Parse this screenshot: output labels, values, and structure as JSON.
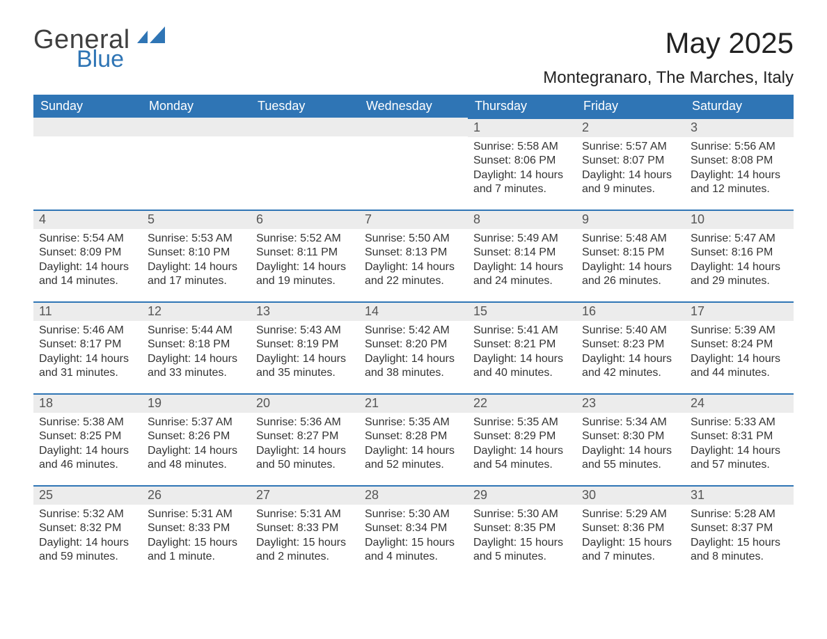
{
  "brand": {
    "word1": "General",
    "word2": "Blue",
    "accent_color": "#2f75b5"
  },
  "title": "May 2025",
  "location": "Montegranaro, The Marches, Italy",
  "colors": {
    "header_bg": "#2f75b5",
    "header_text": "#ffffff",
    "daybar_bg": "#ececec",
    "daybar_border": "#2f75b5",
    "body_text": "#333333",
    "page_bg": "#ffffff"
  },
  "weekdays": [
    "Sunday",
    "Monday",
    "Tuesday",
    "Wednesday",
    "Thursday",
    "Friday",
    "Saturday"
  ],
  "weeks": [
    [
      null,
      null,
      null,
      null,
      {
        "n": "1",
        "sunrise": "Sunrise: 5:58 AM",
        "sunset": "Sunset: 8:06 PM",
        "daylight": "Daylight: 14 hours and 7 minutes."
      },
      {
        "n": "2",
        "sunrise": "Sunrise: 5:57 AM",
        "sunset": "Sunset: 8:07 PM",
        "daylight": "Daylight: 14 hours and 9 minutes."
      },
      {
        "n": "3",
        "sunrise": "Sunrise: 5:56 AM",
        "sunset": "Sunset: 8:08 PM",
        "daylight": "Daylight: 14 hours and 12 minutes."
      }
    ],
    [
      {
        "n": "4",
        "sunrise": "Sunrise: 5:54 AM",
        "sunset": "Sunset: 8:09 PM",
        "daylight": "Daylight: 14 hours and 14 minutes."
      },
      {
        "n": "5",
        "sunrise": "Sunrise: 5:53 AM",
        "sunset": "Sunset: 8:10 PM",
        "daylight": "Daylight: 14 hours and 17 minutes."
      },
      {
        "n": "6",
        "sunrise": "Sunrise: 5:52 AM",
        "sunset": "Sunset: 8:11 PM",
        "daylight": "Daylight: 14 hours and 19 minutes."
      },
      {
        "n": "7",
        "sunrise": "Sunrise: 5:50 AM",
        "sunset": "Sunset: 8:13 PM",
        "daylight": "Daylight: 14 hours and 22 minutes."
      },
      {
        "n": "8",
        "sunrise": "Sunrise: 5:49 AM",
        "sunset": "Sunset: 8:14 PM",
        "daylight": "Daylight: 14 hours and 24 minutes."
      },
      {
        "n": "9",
        "sunrise": "Sunrise: 5:48 AM",
        "sunset": "Sunset: 8:15 PM",
        "daylight": "Daylight: 14 hours and 26 minutes."
      },
      {
        "n": "10",
        "sunrise": "Sunrise: 5:47 AM",
        "sunset": "Sunset: 8:16 PM",
        "daylight": "Daylight: 14 hours and 29 minutes."
      }
    ],
    [
      {
        "n": "11",
        "sunrise": "Sunrise: 5:46 AM",
        "sunset": "Sunset: 8:17 PM",
        "daylight": "Daylight: 14 hours and 31 minutes."
      },
      {
        "n": "12",
        "sunrise": "Sunrise: 5:44 AM",
        "sunset": "Sunset: 8:18 PM",
        "daylight": "Daylight: 14 hours and 33 minutes."
      },
      {
        "n": "13",
        "sunrise": "Sunrise: 5:43 AM",
        "sunset": "Sunset: 8:19 PM",
        "daylight": "Daylight: 14 hours and 35 minutes."
      },
      {
        "n": "14",
        "sunrise": "Sunrise: 5:42 AM",
        "sunset": "Sunset: 8:20 PM",
        "daylight": "Daylight: 14 hours and 38 minutes."
      },
      {
        "n": "15",
        "sunrise": "Sunrise: 5:41 AM",
        "sunset": "Sunset: 8:21 PM",
        "daylight": "Daylight: 14 hours and 40 minutes."
      },
      {
        "n": "16",
        "sunrise": "Sunrise: 5:40 AM",
        "sunset": "Sunset: 8:23 PM",
        "daylight": "Daylight: 14 hours and 42 minutes."
      },
      {
        "n": "17",
        "sunrise": "Sunrise: 5:39 AM",
        "sunset": "Sunset: 8:24 PM",
        "daylight": "Daylight: 14 hours and 44 minutes."
      }
    ],
    [
      {
        "n": "18",
        "sunrise": "Sunrise: 5:38 AM",
        "sunset": "Sunset: 8:25 PM",
        "daylight": "Daylight: 14 hours and 46 minutes."
      },
      {
        "n": "19",
        "sunrise": "Sunrise: 5:37 AM",
        "sunset": "Sunset: 8:26 PM",
        "daylight": "Daylight: 14 hours and 48 minutes."
      },
      {
        "n": "20",
        "sunrise": "Sunrise: 5:36 AM",
        "sunset": "Sunset: 8:27 PM",
        "daylight": "Daylight: 14 hours and 50 minutes."
      },
      {
        "n": "21",
        "sunrise": "Sunrise: 5:35 AM",
        "sunset": "Sunset: 8:28 PM",
        "daylight": "Daylight: 14 hours and 52 minutes."
      },
      {
        "n": "22",
        "sunrise": "Sunrise: 5:35 AM",
        "sunset": "Sunset: 8:29 PM",
        "daylight": "Daylight: 14 hours and 54 minutes."
      },
      {
        "n": "23",
        "sunrise": "Sunrise: 5:34 AM",
        "sunset": "Sunset: 8:30 PM",
        "daylight": "Daylight: 14 hours and 55 minutes."
      },
      {
        "n": "24",
        "sunrise": "Sunrise: 5:33 AM",
        "sunset": "Sunset: 8:31 PM",
        "daylight": "Daylight: 14 hours and 57 minutes."
      }
    ],
    [
      {
        "n": "25",
        "sunrise": "Sunrise: 5:32 AM",
        "sunset": "Sunset: 8:32 PM",
        "daylight": "Daylight: 14 hours and 59 minutes."
      },
      {
        "n": "26",
        "sunrise": "Sunrise: 5:31 AM",
        "sunset": "Sunset: 8:33 PM",
        "daylight": "Daylight: 15 hours and 1 minute."
      },
      {
        "n": "27",
        "sunrise": "Sunrise: 5:31 AM",
        "sunset": "Sunset: 8:33 PM",
        "daylight": "Daylight: 15 hours and 2 minutes."
      },
      {
        "n": "28",
        "sunrise": "Sunrise: 5:30 AM",
        "sunset": "Sunset: 8:34 PM",
        "daylight": "Daylight: 15 hours and 4 minutes."
      },
      {
        "n": "29",
        "sunrise": "Sunrise: 5:30 AM",
        "sunset": "Sunset: 8:35 PM",
        "daylight": "Daylight: 15 hours and 5 minutes."
      },
      {
        "n": "30",
        "sunrise": "Sunrise: 5:29 AM",
        "sunset": "Sunset: 8:36 PM",
        "daylight": "Daylight: 15 hours and 7 minutes."
      },
      {
        "n": "31",
        "sunrise": "Sunrise: 5:28 AM",
        "sunset": "Sunset: 8:37 PM",
        "daylight": "Daylight: 15 hours and 8 minutes."
      }
    ]
  ]
}
